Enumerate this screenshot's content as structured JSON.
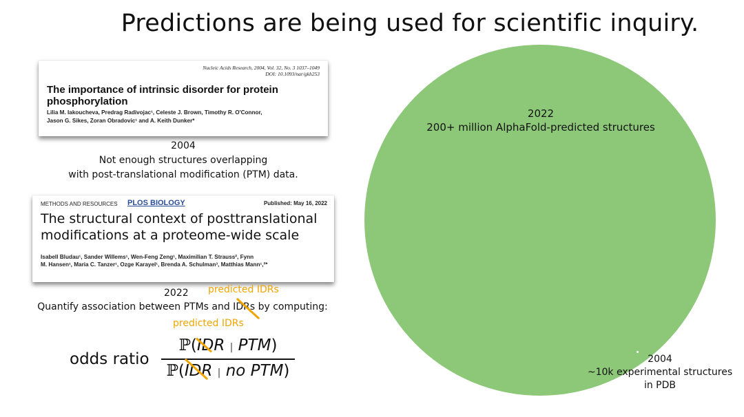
{
  "title": "Predictions are being used for scientific inquiry.",
  "paper2004": {
    "journal_line1": "Nucleic Acids Research, 2004, Vol. 32, No. 3   1037–1049",
    "journal_line2": "DOI: 10.1093/nar/gkh253",
    "title_line1": "The importance of intrinsic disorder for protein",
    "title_line2": "phosphorylation",
    "authors_line1": "Lilia M. Iakoucheva, Predrag Radivojac¹, Celeste J. Brown, Timothy R. O'Connor,",
    "authors_line2": "Jason G. Sikes, Zoran Obradovic¹ and A. Keith Dunker*"
  },
  "caption2004": {
    "year": "2004",
    "line1": "Not enough structures overlapping",
    "line2": "with post-translational modification (PTM) data."
  },
  "paper2022": {
    "section": "METHODS AND RESOURCES",
    "journal": "PLOS BIOLOGY",
    "date": "Published: May 16, 2022",
    "title_line1": "The structural context of posttranslational",
    "title_line2": "modifications at a proteome-wide scale",
    "authors_line1": "Isabell Bludau¹, Sander Willems¹, Wen-Feng Zeng¹, Maximilian T. Strauss², Fynn",
    "authors_line2": "M. Hansen¹, Maria C. Tanzer¹, Ozge Karayel¹, Brenda A. Schulman³, Matthias Mann¹,²*"
  },
  "caption2022": {
    "year": "2022",
    "annotation": "predicted IDRs",
    "sentence": "Quantify association between PTMs and IDRs by computing:"
  },
  "formula": {
    "annotation": "predicted IDRs",
    "label": "odds ratio",
    "P": "ℙ",
    "lparen": "(",
    "rparen": ")",
    "bar": "|",
    "idr": "IDR",
    "ptm": "PTM",
    "no_ptm": "no PTM"
  },
  "circles": {
    "big_year": "2022",
    "big_label": "200+ million AlphaFold-predicted structures",
    "small_year": "2004",
    "small_line1": "~10k experimental structures",
    "small_line2": "in PDB",
    "big_color": "#8cc878"
  }
}
